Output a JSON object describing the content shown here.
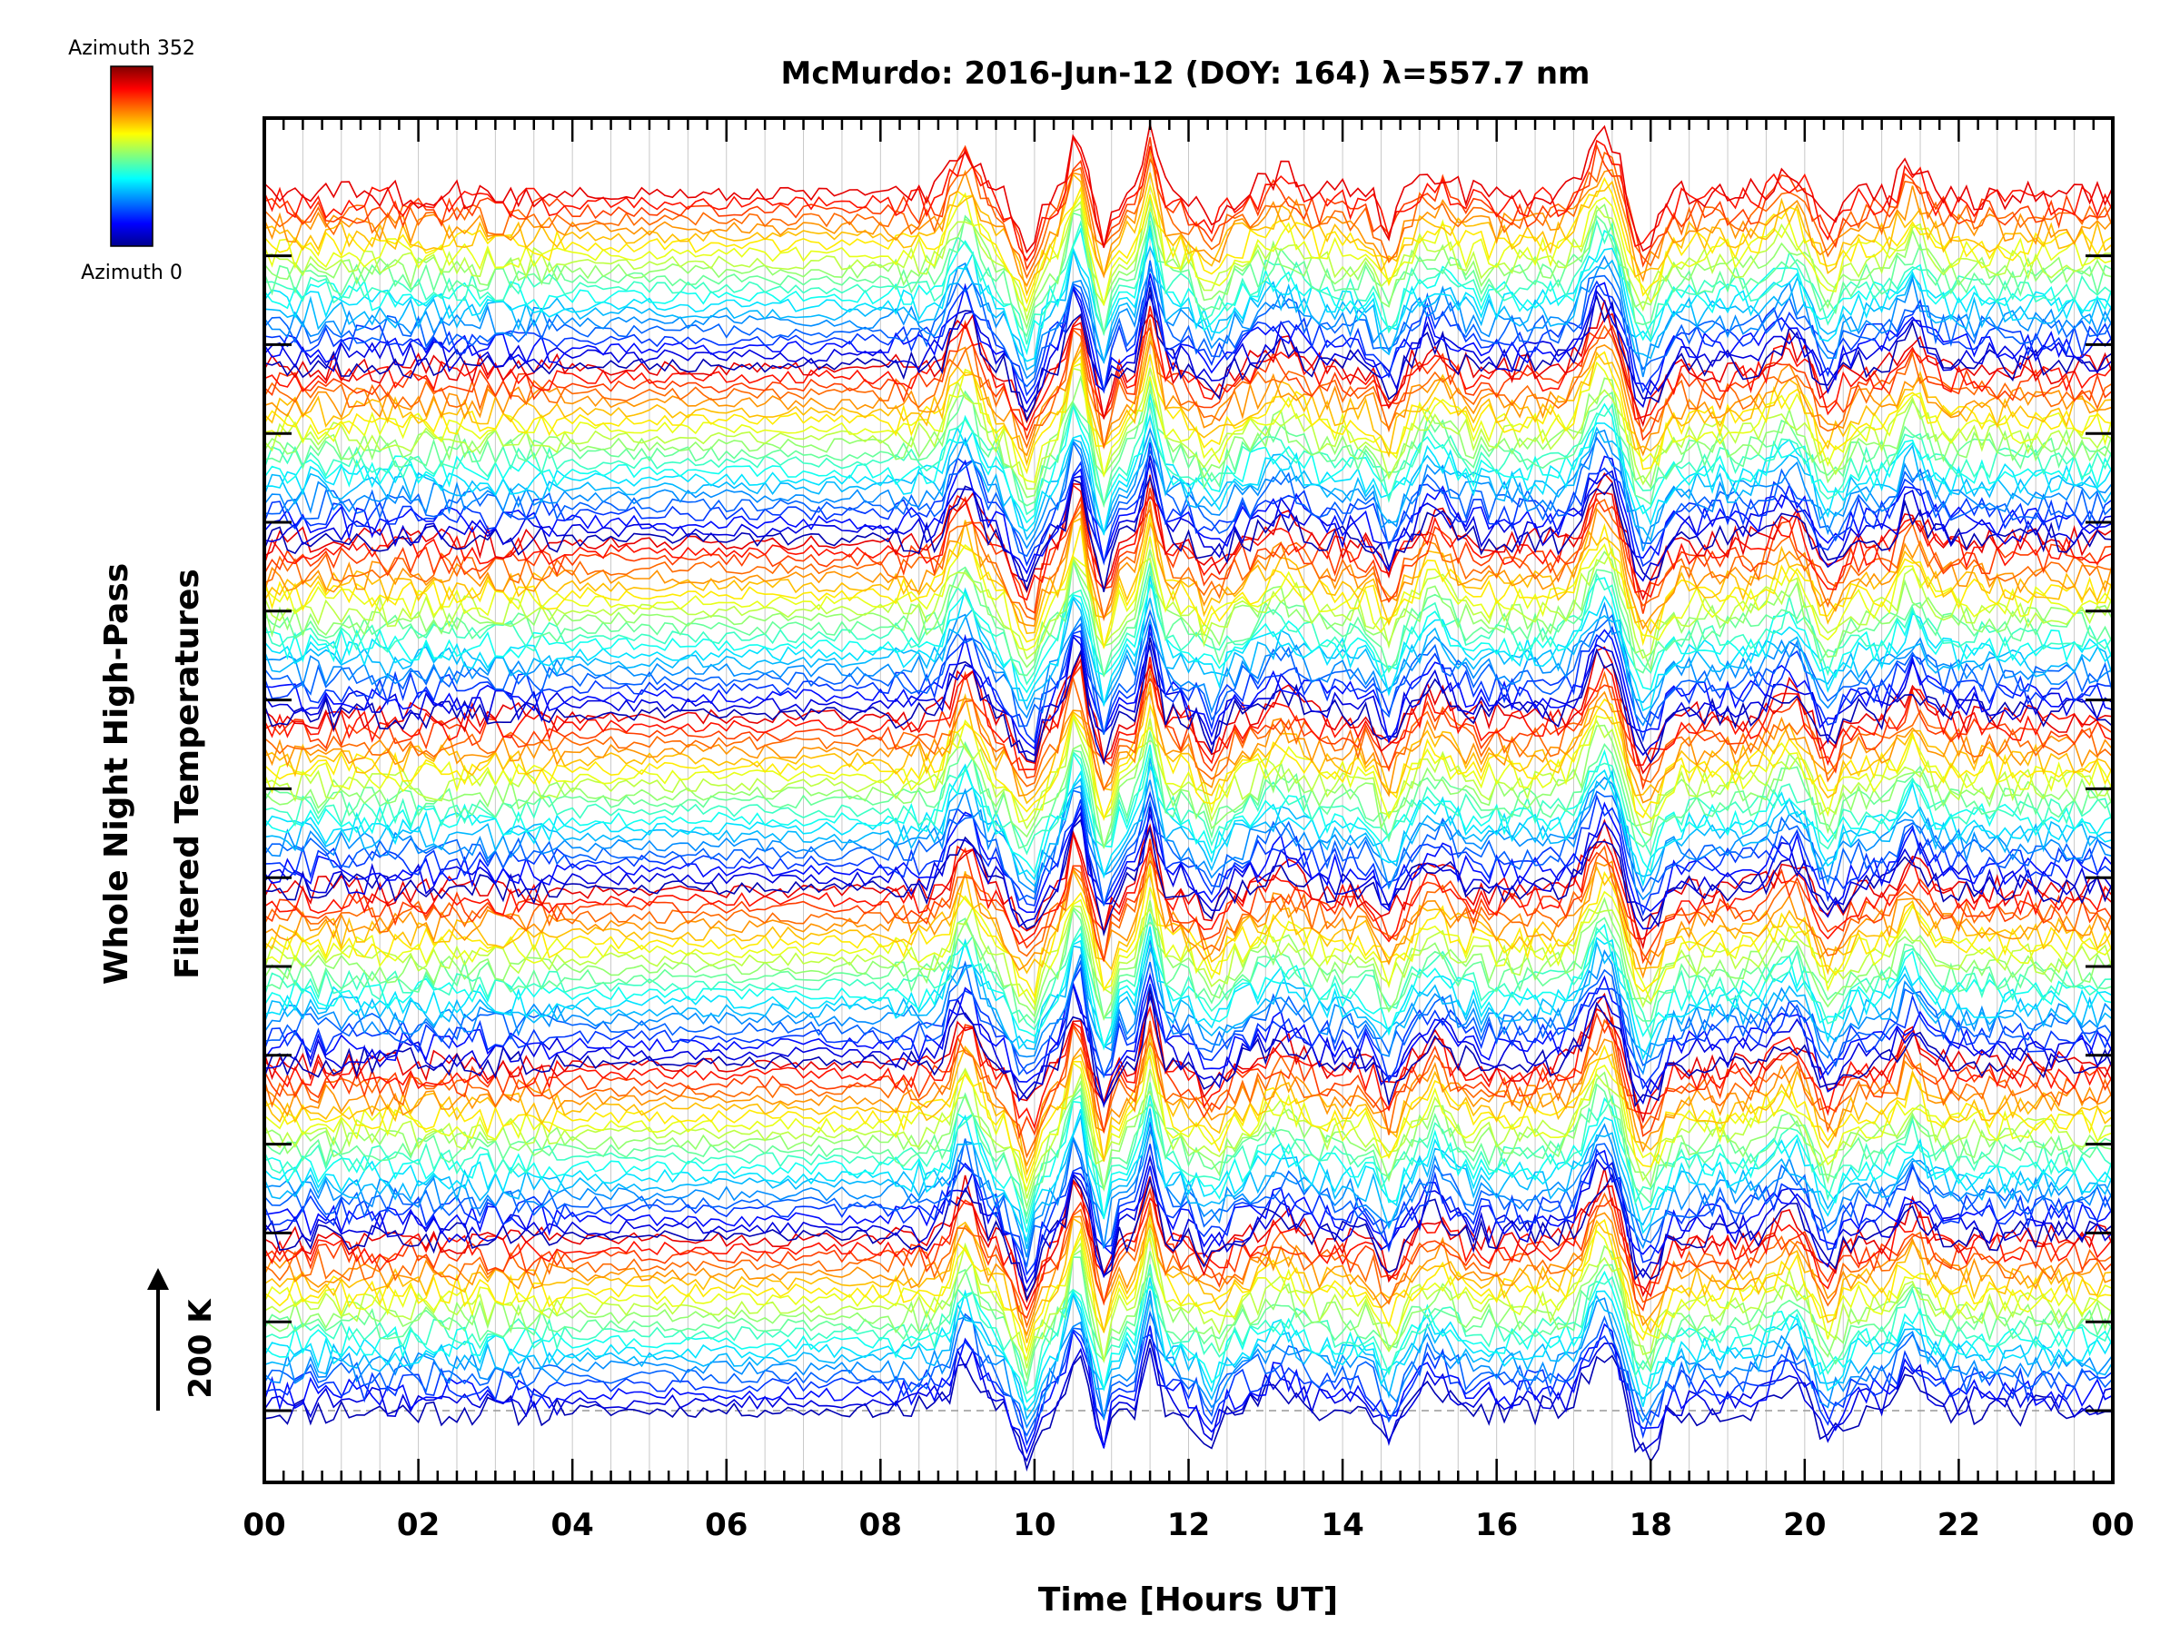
{
  "chart_data": {
    "type": "line",
    "title": "McMurdo: 2016-Jun-12 (DOY: 164) λ=557.7 nm",
    "xlabel": "Time [Hours UT]",
    "ylabel": [
      "Whole Night High-Pass",
      "Filtered Temperatures"
    ],
    "xlim": [
      0,
      24
    ],
    "x_ticks": [
      "00",
      "02",
      "04",
      "06",
      "08",
      "10",
      "12",
      "14",
      "16",
      "18",
      "20",
      "22",
      "00"
    ],
    "x_tick_values": [
      0,
      2,
      4,
      6,
      8,
      10,
      12,
      14,
      16,
      18,
      20,
      22,
      24
    ],
    "scale_bar": {
      "label": "200 K"
    },
    "colorbar": {
      "top_label": "Azimuth 352",
      "bottom_label": "Azimuth 0",
      "azimuth_min": 0,
      "azimuth_max": 352
    },
    "groups": 7,
    "series_per_group": 21,
    "azimuth_step": 16,
    "grid": "vertical",
    "legend": "colorbar top-left",
    "colors": {
      "axis": "#000000",
      "grid": "#c8c8c8",
      "zero_line": "#999999"
    }
  }
}
